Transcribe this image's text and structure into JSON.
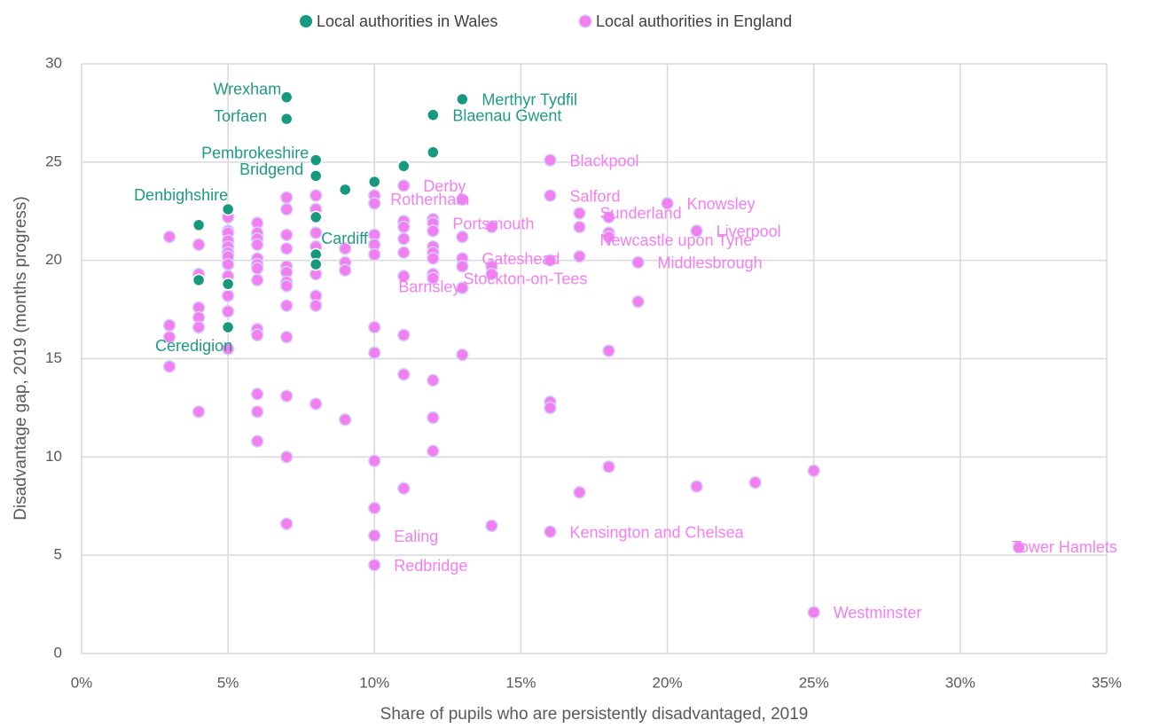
{
  "chart_data": {
    "type": "scatter",
    "xlabel": "Share of pupils who are persistently disadvantaged, 2019",
    "ylabel": "Disadvantage gap, 2019 (months progress)",
    "xlim": [
      0,
      35
    ],
    "xticks": [
      {
        "value": 0,
        "label": "0%"
      },
      {
        "value": 5,
        "label": "5%"
      },
      {
        "value": 10,
        "label": "10%"
      },
      {
        "value": 15,
        "label": "15%"
      },
      {
        "value": 20,
        "label": "20%"
      },
      {
        "value": 25,
        "label": "25%"
      },
      {
        "value": 30,
        "label": "30%"
      },
      {
        "value": 35,
        "label": "35%"
      }
    ],
    "ylim": [
      0,
      30
    ],
    "yticks": [
      0,
      5,
      10,
      15,
      20,
      25,
      30
    ],
    "grid": true,
    "legend": "top",
    "series": [
      {
        "name": "Local authorities in Wales",
        "color": "#17997f",
        "label_color": "#1f9a83",
        "x": [
          7,
          7,
          13,
          12,
          12,
          8,
          11,
          8,
          10,
          9,
          5,
          4,
          8,
          8,
          8,
          4,
          5,
          5
        ],
        "values": [
          28.3,
          27.2,
          28.2,
          27.4,
          25.5,
          25.1,
          24.8,
          24.3,
          24.0,
          23.6,
          22.6,
          21.8,
          22.2,
          20.3,
          19.8,
          19.0,
          18.8,
          16.6
        ],
        "labels": [
          "Wrexham",
          "Torfaen",
          "Merthyr Tydfil",
          "Blaenau Gwent",
          null,
          "Pembrokeshire",
          null,
          "Bridgend",
          null,
          null,
          "Denbighshire",
          null,
          null,
          "Cardiff",
          null,
          null,
          null,
          "Ceredigion"
        ]
      },
      {
        "name": "Local authorities in England",
        "color": "#f27ff0",
        "label_color": "#f27ff0",
        "x": [
          3,
          3,
          3,
          3,
          4,
          4,
          4,
          4,
          4,
          4,
          5,
          5,
          5,
          5,
          5,
          5,
          5,
          5,
          5,
          5,
          5,
          5,
          6,
          6,
          6,
          6,
          6,
          6,
          6,
          6,
          6,
          6,
          6,
          6,
          6,
          7,
          7,
          7,
          7,
          7,
          7,
          7,
          7,
          7,
          7,
          7,
          7,
          7,
          8,
          8,
          8,
          8,
          8,
          8,
          8,
          8,
          8,
          9,
          9,
          9,
          9,
          10,
          10,
          10,
          10,
          10,
          10,
          10,
          10,
          10,
          10,
          10,
          11,
          11,
          11,
          11,
          11,
          11,
          11,
          11,
          11,
          12,
          12,
          12,
          12,
          12,
          12,
          12,
          12,
          12,
          12,
          12,
          13,
          13,
          13,
          13,
          13,
          13,
          14,
          14,
          14,
          14,
          16,
          16,
          16,
          16,
          16,
          16,
          17,
          17,
          17,
          17,
          18,
          18,
          18,
          18,
          18,
          19,
          19,
          20,
          21,
          21,
          23,
          25,
          25,
          32
        ],
        "values": [
          21.2,
          16.7,
          16.1,
          14.6,
          20.8,
          19.3,
          17.6,
          17.1,
          16.6,
          12.3,
          22.2,
          21.5,
          21.4,
          21.0,
          20.7,
          20.4,
          20.2,
          19.8,
          19.2,
          18.2,
          17.4,
          15.5,
          21.9,
          21.4,
          21.1,
          20.8,
          20.1,
          19.8,
          19.6,
          19.0,
          16.5,
          16.2,
          13.2,
          12.3,
          10.8,
          23.2,
          22.6,
          21.3,
          20.6,
          19.7,
          19.4,
          18.9,
          18.7,
          17.7,
          16.1,
          13.1,
          10.0,
          6.6,
          23.3,
          22.6,
          21.4,
          20.7,
          19.8,
          19.3,
          18.2,
          17.7,
          12.7,
          20.6,
          19.9,
          19.5,
          11.9,
          23.3,
          22.9,
          21.3,
          20.8,
          20.3,
          16.6,
          15.3,
          9.8,
          7.4,
          6.0,
          4.5,
          23.8,
          22.0,
          21.7,
          21.1,
          20.4,
          19.2,
          16.2,
          14.2,
          8.4,
          22.1,
          21.9,
          21.5,
          20.7,
          20.4,
          20.1,
          19.3,
          19.1,
          13.9,
          12.0,
          10.3,
          23.1,
          21.2,
          20.1,
          19.7,
          18.6,
          15.2,
          21.7,
          19.7,
          19.3,
          6.5,
          25.1,
          23.3,
          20.0,
          12.8,
          12.5,
          6.2,
          22.4,
          21.7,
          20.2,
          8.2,
          22.2,
          21.4,
          21.2,
          15.4,
          9.5,
          19.9,
          17.9,
          22.9,
          21.5,
          8.5,
          8.7,
          9.3,
          2.1,
          5.4
        ],
        "labels": [
          null,
          null,
          null,
          null,
          null,
          null,
          null,
          null,
          null,
          null,
          null,
          null,
          null,
          null,
          null,
          null,
          null,
          null,
          null,
          null,
          null,
          null,
          null,
          null,
          null,
          null,
          null,
          null,
          null,
          null,
          null,
          null,
          null,
          null,
          null,
          null,
          null,
          null,
          null,
          null,
          null,
          null,
          null,
          null,
          null,
          null,
          null,
          null,
          null,
          null,
          null,
          null,
          null,
          null,
          null,
          null,
          null,
          null,
          null,
          null,
          null,
          null,
          "Rotherham",
          null,
          null,
          null,
          null,
          null,
          null,
          null,
          "Ealing",
          "Redbridge",
          "Derby",
          null,
          null,
          null,
          null,
          null,
          null,
          null,
          null,
          null,
          "Portsmouth",
          null,
          null,
          null,
          null,
          null,
          "Stockton-on-Tees",
          null,
          null,
          null,
          null,
          null,
          "Gateshead",
          null,
          "Barnsley",
          null,
          null,
          null,
          null,
          null,
          "Blackpool",
          "Salford",
          null,
          null,
          null,
          "Kensington and Chelsea",
          null,
          null,
          null,
          null,
          "Sunderland",
          null,
          "Newcastle upon Tyne",
          null,
          null,
          "Middlesbrough",
          null,
          "Knowsley",
          "Liverpool",
          null,
          null,
          null,
          "Westminster",
          "Tower Hamlets"
        ]
      }
    ]
  }
}
